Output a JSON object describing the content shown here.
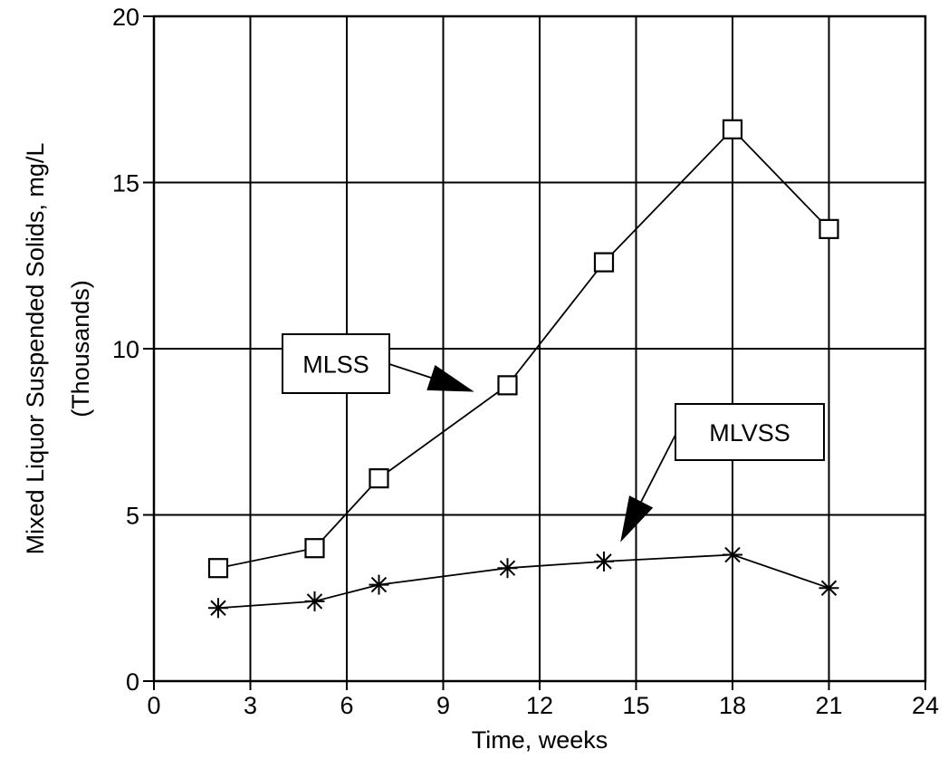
{
  "chart_data": {
    "type": "line",
    "title": "",
    "xlabel": "Time, weeks",
    "ylabel": "Mixed Liquor Suspended Solids, mg/L",
    "ylabel_sub": "(Thousands)",
    "xlim": [
      0,
      24
    ],
    "ylim": [
      0,
      20
    ],
    "xticks": [
      0,
      3,
      6,
      9,
      12,
      15,
      18,
      21,
      24
    ],
    "yticks": [
      0,
      5,
      10,
      15,
      20
    ],
    "grid": true,
    "series": [
      {
        "name": "MLSS",
        "marker": "square",
        "x": [
          2,
          5,
          7,
          11,
          14,
          18,
          21
        ],
        "y": [
          3.4,
          4.0,
          6.1,
          8.9,
          12.6,
          16.6,
          13.6
        ]
      },
      {
        "name": "MLVSS",
        "marker": "asterisk",
        "x": [
          2,
          5,
          7,
          11,
          14,
          18,
          21
        ],
        "y": [
          2.2,
          2.4,
          2.9,
          3.4,
          3.6,
          3.8,
          2.8
        ]
      }
    ],
    "annotations": [
      {
        "text": "MLSS",
        "series": "MLSS"
      },
      {
        "text": "MLVSS",
        "series": "MLVSS"
      }
    ]
  }
}
